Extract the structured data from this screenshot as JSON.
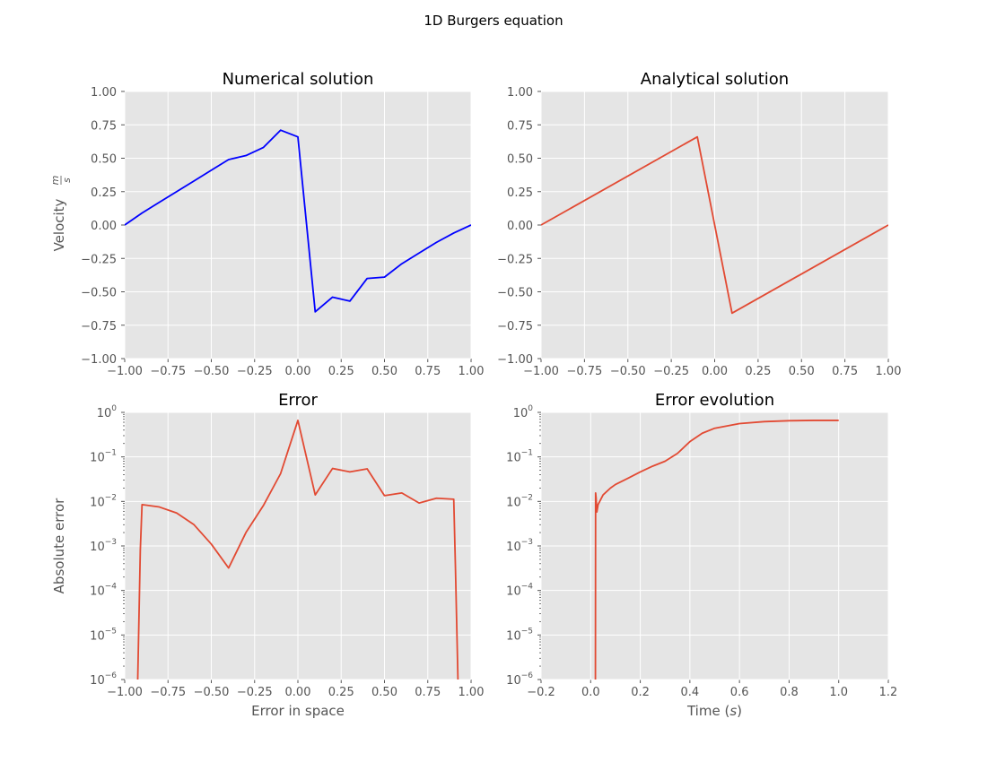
{
  "suptitle": "1D Burgers equation",
  "colors": {
    "panel_background": "#E5E5E5",
    "grid": "#FFFFFF",
    "tick_text": "#555555",
    "numerical_line": "#0000FF",
    "analytical_line": "#E24A33"
  },
  "chart_data": [
    {
      "type": "line",
      "title": "Numerical solution",
      "xlabel": "",
      "ylabel": "Velocity",
      "ylabel_unit_num": "m",
      "ylabel_unit_den": "s",
      "xlim": [
        -1.0,
        1.0
      ],
      "ylim": [
        -1.0,
        1.0
      ],
      "yscale": "linear",
      "grid": true,
      "xticks": [
        "−1.00",
        "−0.75",
        "−0.50",
        "−0.25",
        "0.00",
        "0.25",
        "0.50",
        "0.75",
        "1.00"
      ],
      "yticks": [
        "−1.00",
        "−0.75",
        "−0.50",
        "−0.25",
        "0.00",
        "0.25",
        "0.50",
        "0.75",
        "1.00"
      ],
      "series": [
        {
          "color": "#0000FF",
          "x": [
            -1.0,
            -0.9,
            -0.8,
            -0.7,
            -0.6,
            -0.5,
            -0.4,
            -0.3,
            -0.2,
            -0.1,
            0.0,
            0.1,
            0.2,
            0.3,
            0.4,
            0.5,
            0.6,
            0.7,
            0.8,
            0.9,
            1.0
          ],
          "y": [
            0.0,
            0.09,
            0.17,
            0.25,
            0.33,
            0.41,
            0.49,
            0.52,
            0.58,
            0.71,
            0.66,
            -0.65,
            -0.54,
            -0.57,
            -0.4,
            -0.39,
            -0.29,
            -0.21,
            -0.13,
            -0.06,
            0.0
          ]
        }
      ]
    },
    {
      "type": "line",
      "title": "Analytical solution",
      "xlabel": "",
      "ylabel": "",
      "xlim": [
        -1.0,
        1.0
      ],
      "ylim": [
        -1.0,
        1.0
      ],
      "yscale": "linear",
      "grid": true,
      "xticks": [
        "−1.00",
        "−0.75",
        "−0.50",
        "−0.25",
        "0.00",
        "0.25",
        "0.50",
        "0.75",
        "1.00"
      ],
      "yticks": [
        "−1.00",
        "−0.75",
        "−0.50",
        "−0.25",
        "0.00",
        "0.25",
        "0.50",
        "0.75",
        "1.00"
      ],
      "series": [
        {
          "color": "#E24A33",
          "x": [
            -1.0,
            -0.1,
            0.1,
            1.0
          ],
          "y": [
            0.0,
            0.66,
            -0.66,
            0.0
          ]
        }
      ]
    },
    {
      "type": "line",
      "title": "Error",
      "xlabel": "Error in space",
      "ylabel": "Absolute error",
      "xlim": [
        -1.0,
        1.0
      ],
      "ylim": [
        1e-06,
        1.0
      ],
      "yscale": "log",
      "grid": true,
      "xticks": [
        "−1.00",
        "−0.75",
        "−0.50",
        "−0.25",
        "0.00",
        "0.25",
        "0.50",
        "0.75",
        "1.00"
      ],
      "yticks_exponents": [
        -6,
        -5,
        -4,
        -3,
        -2,
        -1,
        0
      ],
      "series": [
        {
          "color": "#E24A33",
          "x": [
            -0.93,
            -0.91,
            -0.9,
            -0.8,
            -0.7,
            -0.6,
            -0.5,
            -0.4,
            -0.3,
            -0.2,
            -0.1,
            0.0,
            0.1,
            0.2,
            0.3,
            0.4,
            0.5,
            0.6,
            0.7,
            0.8,
            0.9,
            0.91,
            0.93
          ],
          "y": [
            1e-07,
            0.0008,
            0.0085,
            0.0075,
            0.0055,
            0.003,
            0.0011,
            0.00032,
            0.002,
            0.008,
            0.042,
            0.66,
            0.014,
            0.055,
            0.046,
            0.054,
            0.0135,
            0.0155,
            0.0092,
            0.0118,
            0.0112,
            0.0003,
            1e-07
          ]
        }
      ]
    },
    {
      "type": "line",
      "title": "Error evolution",
      "xlabel": "Time (s)",
      "xlabel_main": "Time (",
      "xlabel_var": "s",
      "xlabel_end": ")",
      "ylabel": "",
      "xlim": [
        -0.2,
        1.2
      ],
      "ylim": [
        1e-06,
        1.0
      ],
      "yscale": "log",
      "grid": true,
      "xticks": [
        "−0.2",
        "0.0",
        "0.2",
        "0.4",
        "0.6",
        "0.8",
        "1.0",
        "1.2"
      ],
      "yticks_exponents": [
        -6,
        -5,
        -4,
        -3,
        -2,
        -1,
        0
      ],
      "series": [
        {
          "color": "#E24A33",
          "x": [
            0.019,
            0.02,
            0.022,
            0.025,
            0.03,
            0.05,
            0.08,
            0.1,
            0.15,
            0.2,
            0.25,
            0.3,
            0.35,
            0.4,
            0.45,
            0.5,
            0.6,
            0.7,
            0.8,
            0.9,
            1.0
          ],
          "y": [
            1e-07,
            0.0155,
            0.012,
            0.0058,
            0.0085,
            0.014,
            0.02,
            0.024,
            0.033,
            0.046,
            0.062,
            0.08,
            0.12,
            0.22,
            0.34,
            0.44,
            0.56,
            0.62,
            0.65,
            0.66,
            0.66
          ]
        }
      ]
    }
  ]
}
